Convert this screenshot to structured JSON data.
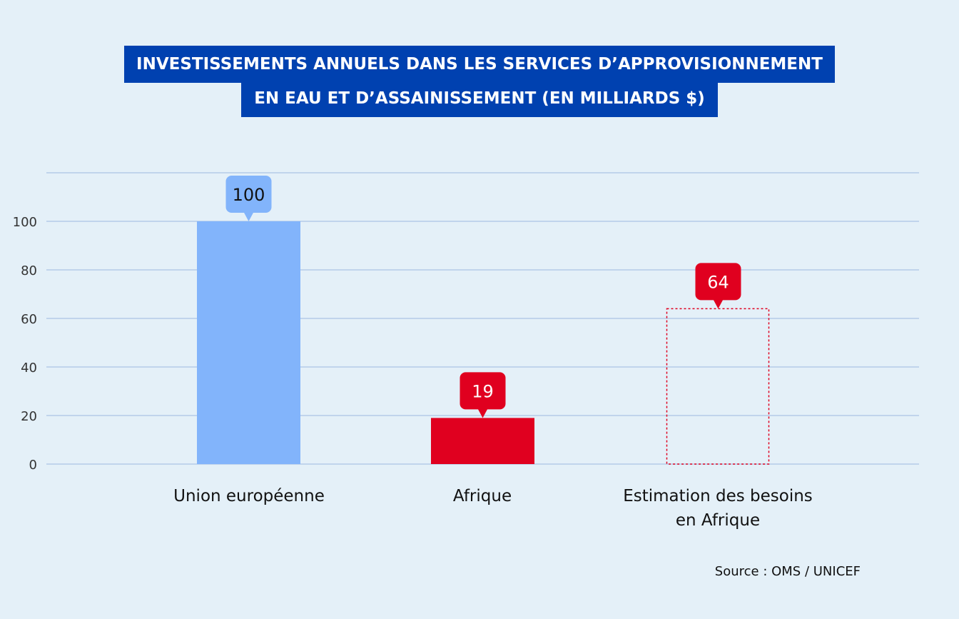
{
  "chart_data": {
    "type": "bar",
    "title": [
      "INVESTISSEMENTS ANNUELS DANS LES SERVICES D’APPROVISIONNEMENT",
      "EN EAU ET D’ASSAINISSEMENT (EN MILLIARDS $)"
    ],
    "categories": [
      "Union européenne",
      "Afrique",
      "Estimation des besoins\nen Afrique"
    ],
    "values": [
      100,
      19,
      64
    ],
    "data_labels": [
      "100",
      "19",
      "64"
    ],
    "bar_styles": [
      "solid",
      "solid",
      "dashed-outline"
    ],
    "colors": [
      "#82b4fb",
      "#e0001f",
      "#e0001f"
    ],
    "yticks": [
      0,
      20,
      40,
      60,
      80,
      100
    ],
    "ylim": [
      0,
      120
    ],
    "grid": true,
    "xlabel": "",
    "ylabel": ""
  },
  "source": "Source : OMS / UNICEF"
}
